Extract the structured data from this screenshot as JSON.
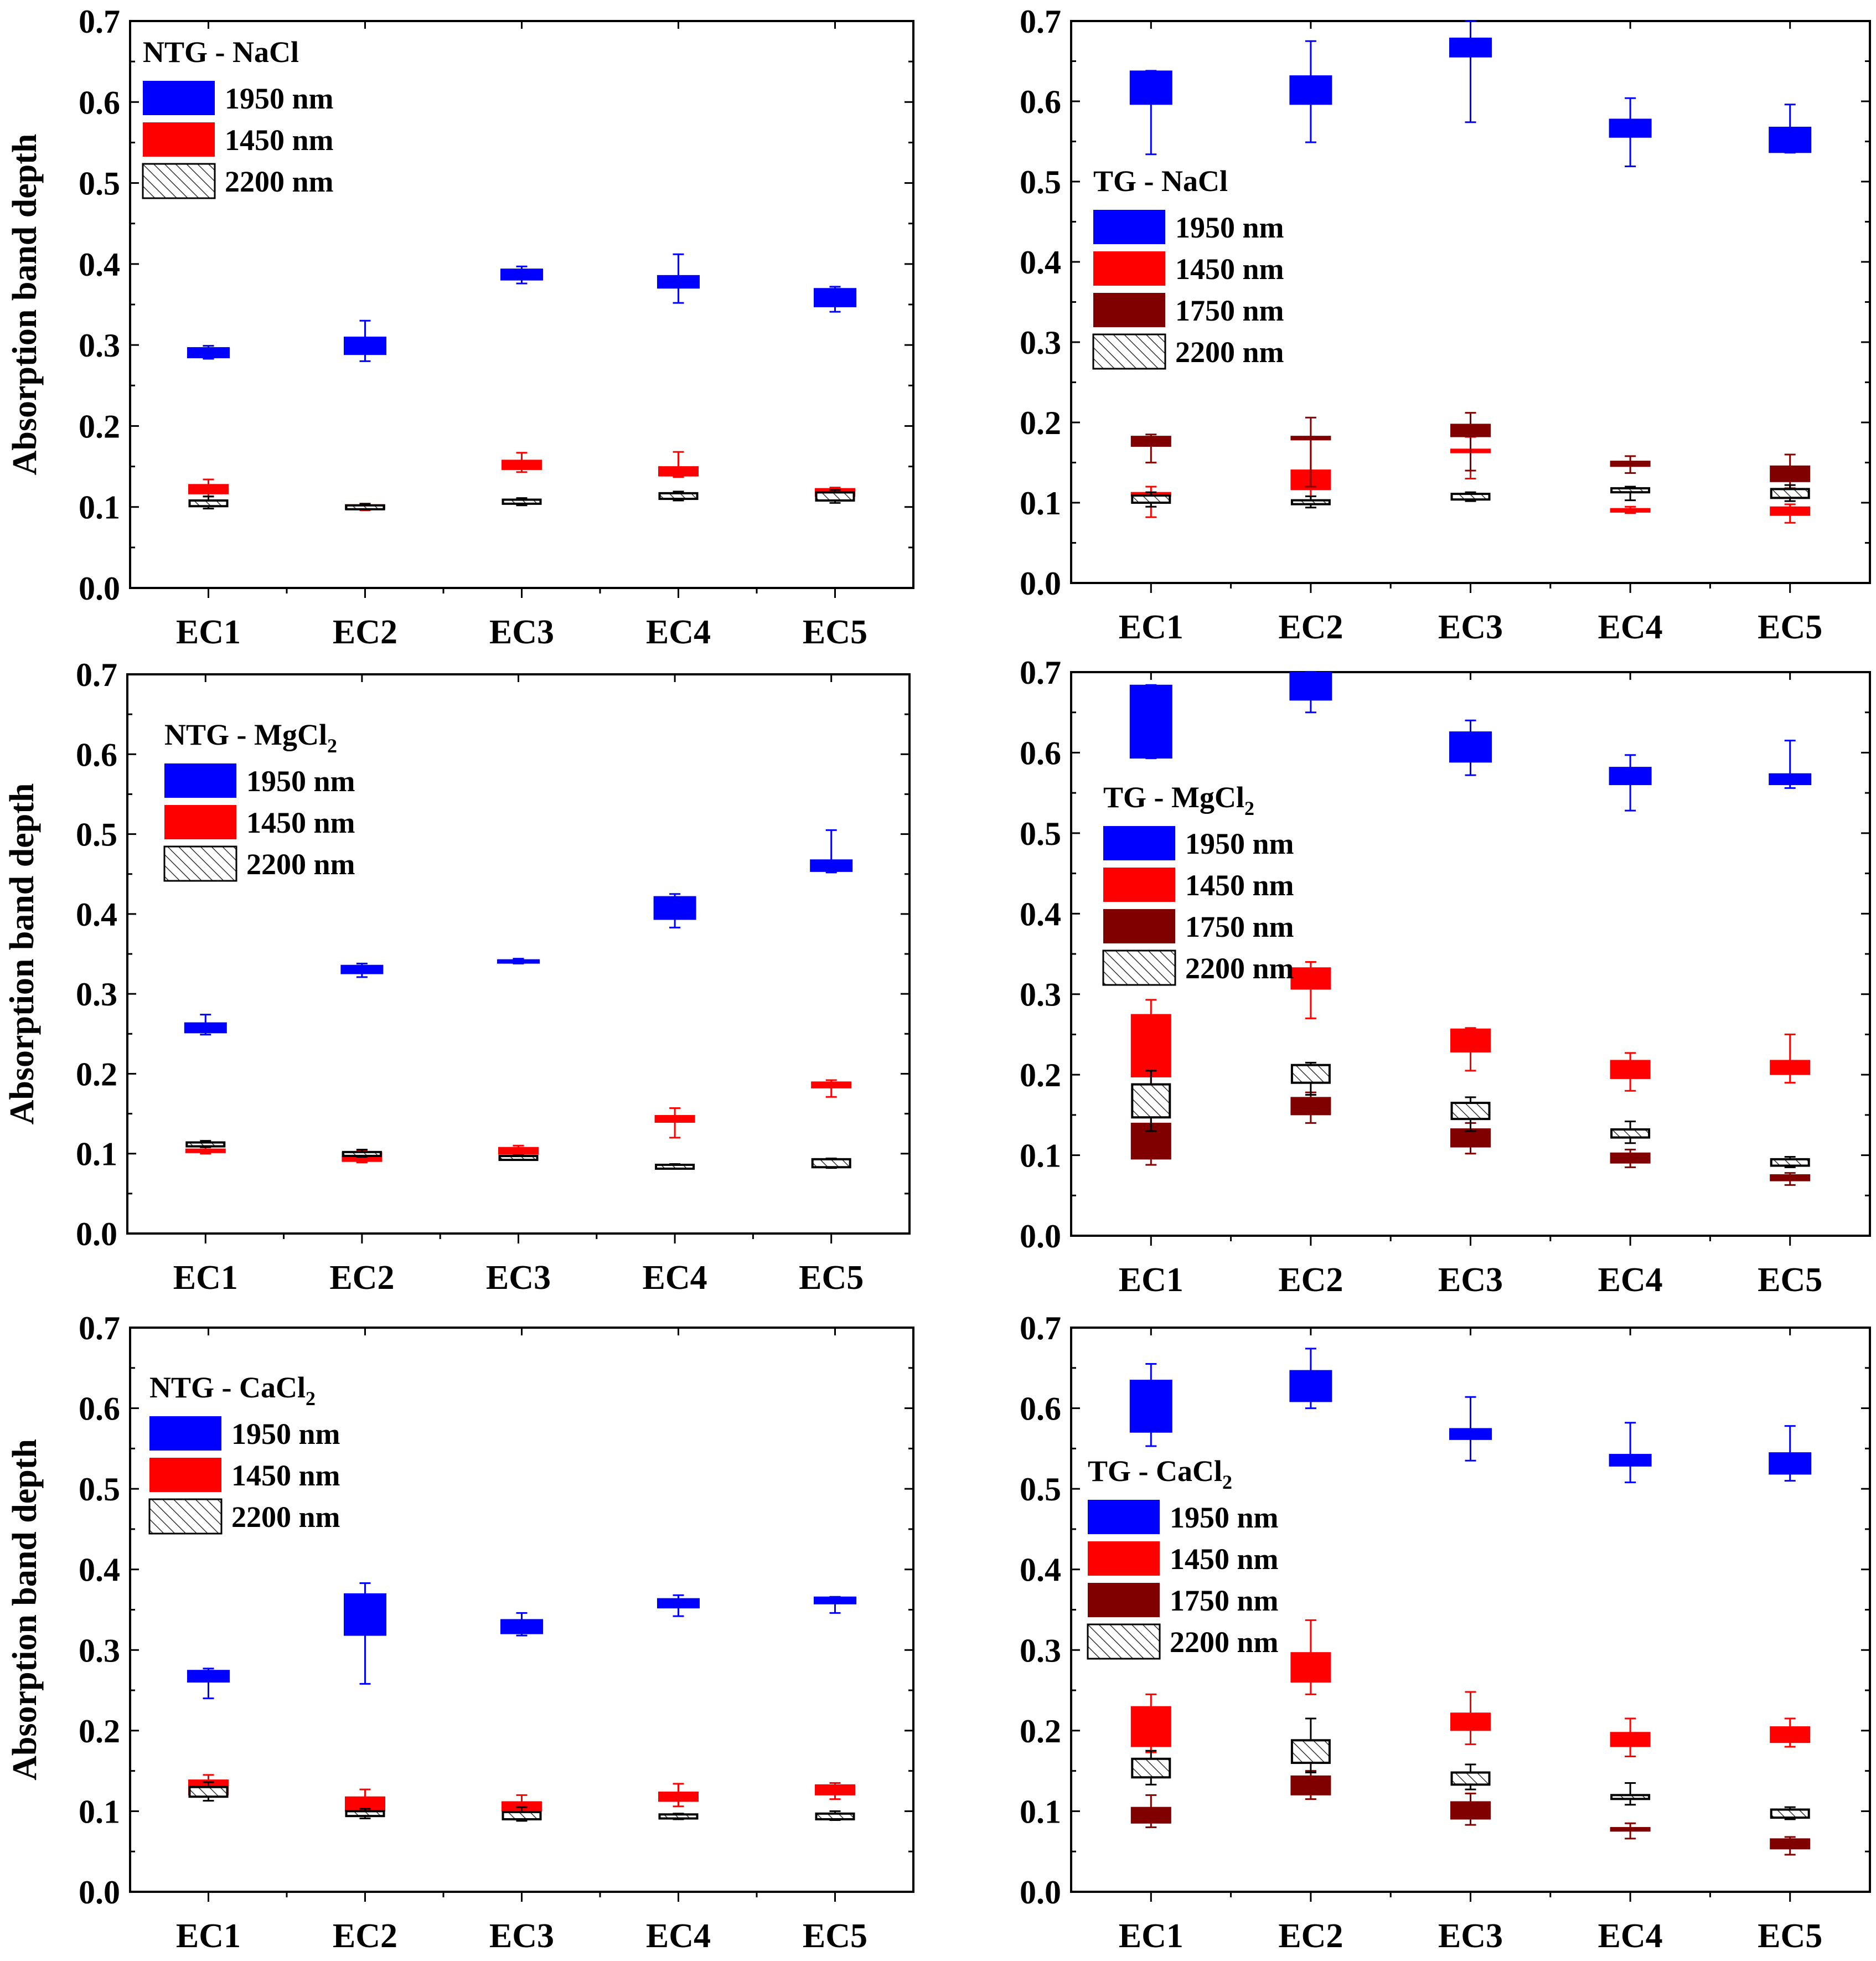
{
  "colors": {
    "1950 nm": "#0000ff",
    "1450 nm": "#ff0000",
    "1750 nm": "#800000",
    "2200 nm": "hatch"
  },
  "chart_data": [
    {
      "type": "box",
      "title": "NTG - NaCl",
      "title_parts": [
        "NTG - NaCl",
        ""
      ],
      "ylabel": "Absorption band depth",
      "ylim": [
        0,
        0.7
      ],
      "yticks": [
        "0.0",
        "0.1",
        "0.2",
        "0.3",
        "0.4",
        "0.5",
        "0.6",
        "0.7"
      ],
      "categories": [
        "EC1",
        "EC2",
        "EC3",
        "EC4",
        "EC5"
      ],
      "legend": [
        "1950 nm",
        "1450 nm",
        "2200 nm"
      ],
      "series": [
        {
          "name": "1950 nm",
          "boxes": [
            [
              0.284,
              0.297,
              0.283,
              0.299
            ],
            [
              0.288,
              0.31,
              0.28,
              0.33
            ],
            [
              0.38,
              0.394,
              0.376,
              0.397
            ],
            [
              0.37,
              0.386,
              0.352,
              0.412
            ],
            [
              0.347,
              0.37,
              0.341,
              0.372
            ]
          ]
        },
        {
          "name": "1450 nm",
          "boxes": [
            [
              0.116,
              0.128,
              0.113,
              0.134
            ],
            [
              0.097,
              0.103,
              0.096,
              0.104
            ],
            [
              0.146,
              0.158,
              0.143,
              0.167
            ],
            [
              0.138,
              0.15,
              0.137,
              0.168
            ],
            [
              0.113,
              0.123,
              0.112,
              0.124
            ]
          ]
        },
        {
          "name": "2200 nm",
          "boxes": [
            [
              0.101,
              0.108,
              0.098,
              0.113
            ],
            [
              0.098,
              0.102,
              0.097,
              0.104
            ],
            [
              0.104,
              0.109,
              0.102,
              0.111
            ],
            [
              0.11,
              0.117,
              0.108,
              0.119
            ],
            [
              0.108,
              0.118,
              0.105,
              0.121
            ]
          ]
        }
      ]
    },
    {
      "type": "box",
      "title": "TG - NaCl",
      "title_parts": [
        "TG - NaCl",
        ""
      ],
      "ylabel": "",
      "ylim": [
        0,
        0.7
      ],
      "yticks": [
        "0.0",
        "0.1",
        "0.2",
        "0.3",
        "0.4",
        "0.5",
        "0.6",
        "0.7"
      ],
      "categories": [
        "EC1",
        "EC2",
        "EC3",
        "EC4",
        "EC5"
      ],
      "legend": [
        "1950 nm",
        "1450 nm",
        "1750 nm",
        "2200 nm"
      ],
      "series": [
        {
          "name": "1950 nm",
          "boxes": [
            [
              0.596,
              0.638,
              0.534,
              0.638
            ],
            [
              0.596,
              0.632,
              0.549,
              0.675
            ],
            [
              0.655,
              0.679,
              0.574,
              0.7
            ],
            [
              0.555,
              0.578,
              0.519,
              0.604
            ],
            [
              0.536,
              0.568,
              0.536,
              0.596
            ]
          ]
        },
        {
          "name": "1450 nm",
          "boxes": [
            [
              0.108,
              0.113,
              0.082,
              0.12
            ],
            [
              0.116,
              0.141,
              0.1,
              0.18
            ],
            [
              0.162,
              0.167,
              0.13,
              0.182
            ],
            [
              0.088,
              0.093,
              0.087,
              0.095
            ],
            [
              0.084,
              0.095,
              0.075,
              0.098
            ]
          ]
        },
        {
          "name": "1750 nm",
          "boxes": [
            [
              0.17,
              0.183,
              0.15,
              0.185
            ],
            [
              0.178,
              0.183,
              0.12,
              0.206
            ],
            [
              0.182,
              0.198,
              0.14,
              0.212
            ],
            [
              0.145,
              0.152,
              0.137,
              0.158
            ],
            [
              0.126,
              0.146,
              0.118,
              0.16
            ]
          ]
        },
        {
          "name": "2200 nm",
          "boxes": [
            [
              0.1,
              0.109,
              0.095,
              0.113
            ],
            [
              0.099,
              0.103,
              0.094,
              0.108
            ],
            [
              0.104,
              0.111,
              0.102,
              0.113
            ],
            [
              0.113,
              0.118,
              0.103,
              0.12
            ],
            [
              0.106,
              0.117,
              0.102,
              0.122
            ]
          ]
        }
      ]
    },
    {
      "type": "box",
      "title": "NTG - MgCl",
      "title_parts": [
        "NTG - MgCl",
        "2"
      ],
      "ylabel": "Absorption band depth",
      "ylim": [
        0,
        0.7
      ],
      "yticks": [
        "0.0",
        "0.1",
        "0.2",
        "0.3",
        "0.4",
        "0.5",
        "0.6",
        "0.7"
      ],
      "categories": [
        "EC1",
        "EC2",
        "EC3",
        "EC4",
        "EC5"
      ],
      "legend": [
        "1950 nm",
        "1450 nm",
        "2200 nm"
      ],
      "series": [
        {
          "name": "1950 nm",
          "boxes": [
            [
              0.251,
              0.264,
              0.249,
              0.274
            ],
            [
              0.325,
              0.336,
              0.321,
              0.338
            ],
            [
              0.339,
              0.343,
              0.338,
              0.344
            ],
            [
              0.393,
              0.422,
              0.383,
              0.425
            ],
            [
              0.453,
              0.468,
              0.452,
              0.505
            ]
          ]
        },
        {
          "name": "1450 nm",
          "boxes": [
            [
              0.101,
              0.106,
              0.1,
              0.108
            ],
            [
              0.09,
              0.102,
              0.089,
              0.104
            ],
            [
              0.099,
              0.108,
              0.097,
              0.11
            ],
            [
              0.139,
              0.148,
              0.12,
              0.157
            ],
            [
              0.182,
              0.19,
              0.171,
              0.192
            ]
          ]
        },
        {
          "name": "2200 nm",
          "boxes": [
            [
              0.11,
              0.114,
              0.108,
              0.116
            ],
            [
              0.098,
              0.102,
              0.096,
              0.105
            ],
            [
              0.093,
              0.097,
              0.092,
              0.098
            ],
            [
              0.082,
              0.086,
              0.081,
              0.087
            ],
            [
              0.083,
              0.093,
              0.082,
              0.094
            ]
          ]
        }
      ]
    },
    {
      "type": "box",
      "title": "TG - MgCl",
      "title_parts": [
        "TG - MgCl",
        "2"
      ],
      "ylabel": "",
      "ylim": [
        0,
        0.7
      ],
      "yticks": [
        "0.0",
        "0.1",
        "0.2",
        "0.3",
        "0.4",
        "0.5",
        "0.6",
        "0.7"
      ],
      "categories": [
        "EC1",
        "EC2",
        "EC3",
        "EC4",
        "EC5"
      ],
      "legend": [
        "1950 nm",
        "1450 nm",
        "1750 nm",
        "2200 nm"
      ],
      "series": [
        {
          "name": "1950 nm",
          "boxes": [
            [
              0.593,
              0.684,
              0.593,
              0.684
            ],
            [
              0.665,
              0.7,
              0.65,
              0.7
            ],
            [
              0.588,
              0.626,
              0.572,
              0.64
            ],
            [
              0.56,
              0.582,
              0.528,
              0.597
            ],
            [
              0.56,
              0.574,
              0.556,
              0.615
            ]
          ]
        },
        {
          "name": "1450 nm",
          "boxes": [
            [
              0.197,
              0.275,
              0.17,
              0.293
            ],
            [
              0.306,
              0.333,
              0.27,
              0.34
            ],
            [
              0.228,
              0.257,
              0.205,
              0.258
            ],
            [
              0.195,
              0.218,
              0.18,
              0.227
            ],
            [
              0.2,
              0.218,
              0.19,
              0.25
            ]
          ]
        },
        {
          "name": "1750 nm",
          "boxes": [
            [
              0.095,
              0.14,
              0.088,
              0.148
            ],
            [
              0.15,
              0.172,
              0.14,
              0.178
            ],
            [
              0.11,
              0.133,
              0.102,
              0.14
            ],
            [
              0.09,
              0.103,
              0.085,
              0.107
            ],
            [
              0.068,
              0.076,
              0.063,
              0.078
            ]
          ]
        },
        {
          "name": "2200 nm",
          "boxes": [
            [
              0.147,
              0.188,
              0.13,
              0.205
            ],
            [
              0.19,
              0.212,
              0.175,
              0.215
            ],
            [
              0.145,
              0.165,
              0.13,
              0.172
            ],
            [
              0.122,
              0.132,
              0.115,
              0.142
            ],
            [
              0.087,
              0.095,
              0.085,
              0.098
            ]
          ]
        }
      ]
    },
    {
      "type": "box",
      "title": "NTG - CaCl",
      "title_parts": [
        "NTG - CaCl",
        "2"
      ],
      "ylabel": "Absorption band depth",
      "ylim": [
        0,
        0.7
      ],
      "yticks": [
        "0.0",
        "0.1",
        "0.2",
        "0.3",
        "0.4",
        "0.5",
        "0.6",
        "0.7"
      ],
      "categories": [
        "EC1",
        "EC2",
        "EC3",
        "EC4",
        "EC5"
      ],
      "legend": [
        "1950 nm",
        "1450 nm",
        "2200 nm"
      ],
      "series": [
        {
          "name": "1950 nm",
          "boxes": [
            [
              0.26,
              0.275,
              0.24,
              0.277
            ],
            [
              0.318,
              0.37,
              0.258,
              0.383
            ],
            [
              0.32,
              0.338,
              0.318,
              0.346
            ],
            [
              0.352,
              0.364,
              0.342,
              0.368
            ],
            [
              0.357,
              0.366,
              0.346,
              0.366
            ]
          ]
        },
        {
          "name": "1450 nm",
          "boxes": [
            [
              0.12,
              0.139,
              0.118,
              0.145
            ],
            [
              0.1,
              0.118,
              0.095,
              0.127
            ],
            [
              0.1,
              0.112,
              0.097,
              0.12
            ],
            [
              0.112,
              0.124,
              0.106,
              0.134
            ],
            [
              0.12,
              0.133,
              0.115,
              0.135
            ]
          ]
        },
        {
          "name": "2200 nm",
          "boxes": [
            [
              0.118,
              0.13,
              0.113,
              0.136
            ],
            [
              0.094,
              0.1,
              0.091,
              0.103
            ],
            [
              0.09,
              0.099,
              0.088,
              0.105
            ],
            [
              0.091,
              0.096,
              0.09,
              0.097
            ],
            [
              0.09,
              0.097,
              0.089,
              0.1
            ]
          ]
        }
      ]
    },
    {
      "type": "box",
      "title": "TG - CaCl",
      "title_parts": [
        "TG - CaCl",
        "2"
      ],
      "ylabel": "",
      "ylim": [
        0,
        0.7
      ],
      "yticks": [
        "0.0",
        "0.1",
        "0.2",
        "0.3",
        "0.4",
        "0.5",
        "0.6",
        "0.7"
      ],
      "categories": [
        "EC1",
        "EC2",
        "EC3",
        "EC4",
        "EC5"
      ],
      "legend": [
        "1950 nm",
        "1450 nm",
        "1750 nm",
        "2200 nm"
      ],
      "series": [
        {
          "name": "1950 nm",
          "boxes": [
            [
              0.57,
              0.635,
              0.553,
              0.655
            ],
            [
              0.608,
              0.647,
              0.6,
              0.674
            ],
            [
              0.561,
              0.575,
              0.535,
              0.614
            ],
            [
              0.528,
              0.543,
              0.508,
              0.582
            ],
            [
              0.518,
              0.545,
              0.51,
              0.578
            ]
          ]
        },
        {
          "name": "1450 nm",
          "boxes": [
            [
              0.18,
              0.23,
              0.173,
              0.245
            ],
            [
              0.26,
              0.297,
              0.245,
              0.337
            ],
            [
              0.2,
              0.222,
              0.183,
              0.248
            ],
            [
              0.18,
              0.198,
              0.168,
              0.215
            ],
            [
              0.185,
              0.205,
              0.18,
              0.215
            ]
          ]
        },
        {
          "name": "1750 nm",
          "boxes": [
            [
              0.085,
              0.105,
              0.08,
              0.12
            ],
            [
              0.12,
              0.144,
              0.115,
              0.15
            ],
            [
              0.09,
              0.112,
              0.083,
              0.122
            ],
            [
              0.075,
              0.08,
              0.066,
              0.085
            ],
            [
              0.053,
              0.066,
              0.046,
              0.068
            ]
          ]
        },
        {
          "name": "2200 nm",
          "boxes": [
            [
              0.142,
              0.165,
              0.133,
              0.175
            ],
            [
              0.16,
              0.188,
              0.148,
              0.215
            ],
            [
              0.133,
              0.148,
              0.127,
              0.158
            ],
            [
              0.116,
              0.12,
              0.108,
              0.135
            ],
            [
              0.092,
              0.102,
              0.09,
              0.105
            ]
          ]
        }
      ]
    }
  ]
}
